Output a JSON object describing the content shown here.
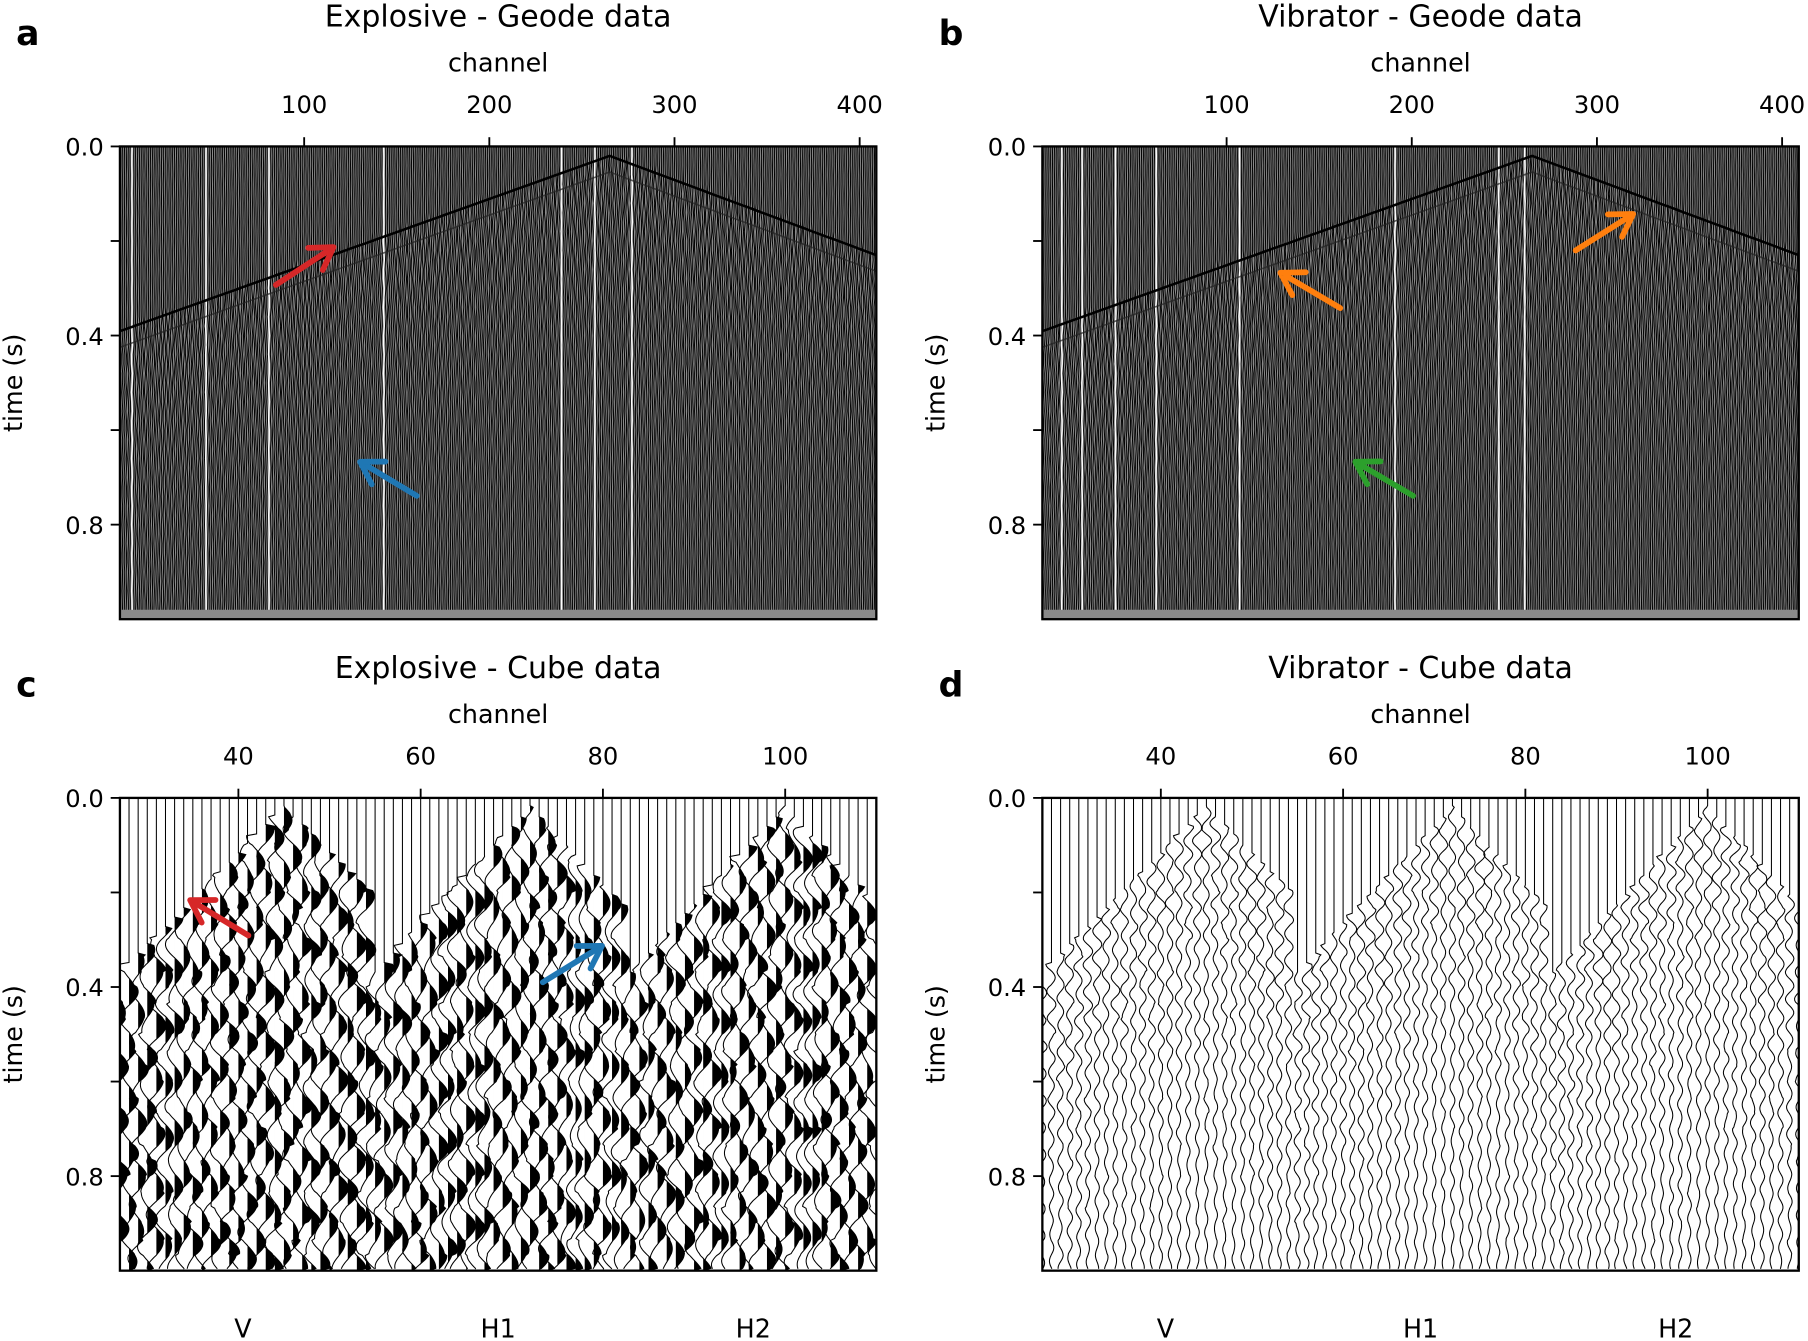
{
  "chart_data": [
    {
      "panel_label": "a",
      "type": "seismic-variable-density",
      "title": "Explosive - Geode data",
      "xlabel": "channel",
      "ylabel": "time (s)",
      "xlim": [
        0.5,
        409
      ],
      "ylim": [
        0.0,
        1.0
      ],
      "xticks": [
        "100",
        "200",
        "300",
        "400"
      ],
      "xtick_values": [
        100,
        200,
        300,
        400
      ],
      "yticks": [
        "0.0",
        "0.4",
        "0.8"
      ],
      "ytick_values": [
        0.0,
        0.4,
        0.8
      ],
      "minor_yticks": [
        0.2,
        0.6
      ],
      "first_arrival": {
        "channels": [
          1,
          265,
          409
        ],
        "times": [
          0.39,
          0.02,
          0.23
        ]
      },
      "arrows": [
        {
          "color": "#d62728",
          "tail": [
            84.7,
            0.293
          ],
          "head": [
            115.9,
            0.213
          ]
        },
        {
          "color": "#1f77b4",
          "tail": [
            160.8,
            0.739
          ],
          "head": [
            130.2,
            0.667
          ]
        }
      ]
    },
    {
      "panel_label": "b",
      "type": "seismic-variable-density",
      "title": "Vibrator - Geode data",
      "xlabel": "channel",
      "ylabel": "time (s)",
      "xlim": [
        0.5,
        409
      ],
      "ylim": [
        0.0,
        1.0
      ],
      "xticks": [
        "100",
        "200",
        "300",
        "400"
      ],
      "xtick_values": [
        100,
        200,
        300,
        400
      ],
      "yticks": [
        "0.0",
        "0.4",
        "0.8"
      ],
      "ytick_values": [
        0.0,
        0.4,
        0.8
      ],
      "minor_yticks": [
        0.2,
        0.6
      ],
      "first_arrival": {
        "channels": [
          1,
          265,
          409
        ],
        "times": [
          0.39,
          0.02,
          0.23
        ]
      },
      "arrows": [
        {
          "color": "#ff7f0e",
          "tail": [
            161.4,
            0.342
          ],
          "head": [
            129.0,
            0.267
          ]
        },
        {
          "color": "#ff7f0e",
          "tail": [
            288.5,
            0.22
          ],
          "head": [
            319.6,
            0.143
          ]
        },
        {
          "color": "#2ca02c",
          "tail": [
            200.7,
            0.739
          ],
          "head": [
            169.5,
            0.667
          ]
        }
      ]
    },
    {
      "panel_label": "c",
      "type": "seismic-wiggle",
      "title": "Explosive - Cube data",
      "xlabel": "channel",
      "ylabel": "time (s)",
      "xlim": [
        27,
        110
      ],
      "ylim": [
        0.0,
        1.0
      ],
      "xticks": [
        "40",
        "60",
        "80",
        "100"
      ],
      "xtick_values": [
        40,
        60,
        80,
        100
      ],
      "yticks": [
        "0.0",
        "0.4",
        "0.8"
      ],
      "ytick_values": [
        0.0,
        0.4,
        0.8
      ],
      "minor_yticks": [
        0.2,
        0.6
      ],
      "components": [
        {
          "label": "V",
          "channels": [
            27,
            54
          ],
          "apex_channel": 45,
          "apex_time": 0.02,
          "edge_time": 0.37
        },
        {
          "label": "H1",
          "channels": [
            55,
            82
          ],
          "apex_channel": 72,
          "apex_time": 0.02,
          "edge_time": 0.37
        },
        {
          "label": "H2",
          "channels": [
            83,
            110
          ],
          "apex_channel": 100,
          "apex_time": 0.02,
          "edge_time": 0.37
        }
      ],
      "fill_positive": true,
      "arrows": [
        {
          "color": "#d62728",
          "tail": [
            41.1,
            0.291
          ],
          "head": [
            34.7,
            0.216
          ]
        },
        {
          "color": "#1f77b4",
          "tail": [
            73.4,
            0.39
          ],
          "head": [
            79.9,
            0.313
          ]
        }
      ]
    },
    {
      "panel_label": "d",
      "type": "seismic-wiggle",
      "title": "Vibrator - Cube data",
      "xlabel": "channel",
      "ylabel": "time (s)",
      "xlim": [
        27,
        110
      ],
      "ylim": [
        0.0,
        1.0
      ],
      "xticks": [
        "40",
        "60",
        "80",
        "100"
      ],
      "xtick_values": [
        40,
        60,
        80,
        100
      ],
      "yticks": [
        "0.0",
        "0.4",
        "0.8"
      ],
      "ytick_values": [
        0.0,
        0.4,
        0.8
      ],
      "minor_yticks": [
        0.2,
        0.6
      ],
      "components": [
        {
          "label": "V",
          "channels": [
            27,
            54
          ],
          "apex_channel": 45,
          "apex_time": 0.02,
          "edge_time": 0.37
        },
        {
          "label": "H1",
          "channels": [
            55,
            82
          ],
          "apex_channel": 72,
          "apex_time": 0.02,
          "edge_time": 0.37
        },
        {
          "label": "H2",
          "channels": [
            83,
            110
          ],
          "apex_channel": 100,
          "apex_time": 0.02,
          "edge_time": 0.37
        }
      ],
      "fill_positive": false,
      "arrows": []
    }
  ]
}
